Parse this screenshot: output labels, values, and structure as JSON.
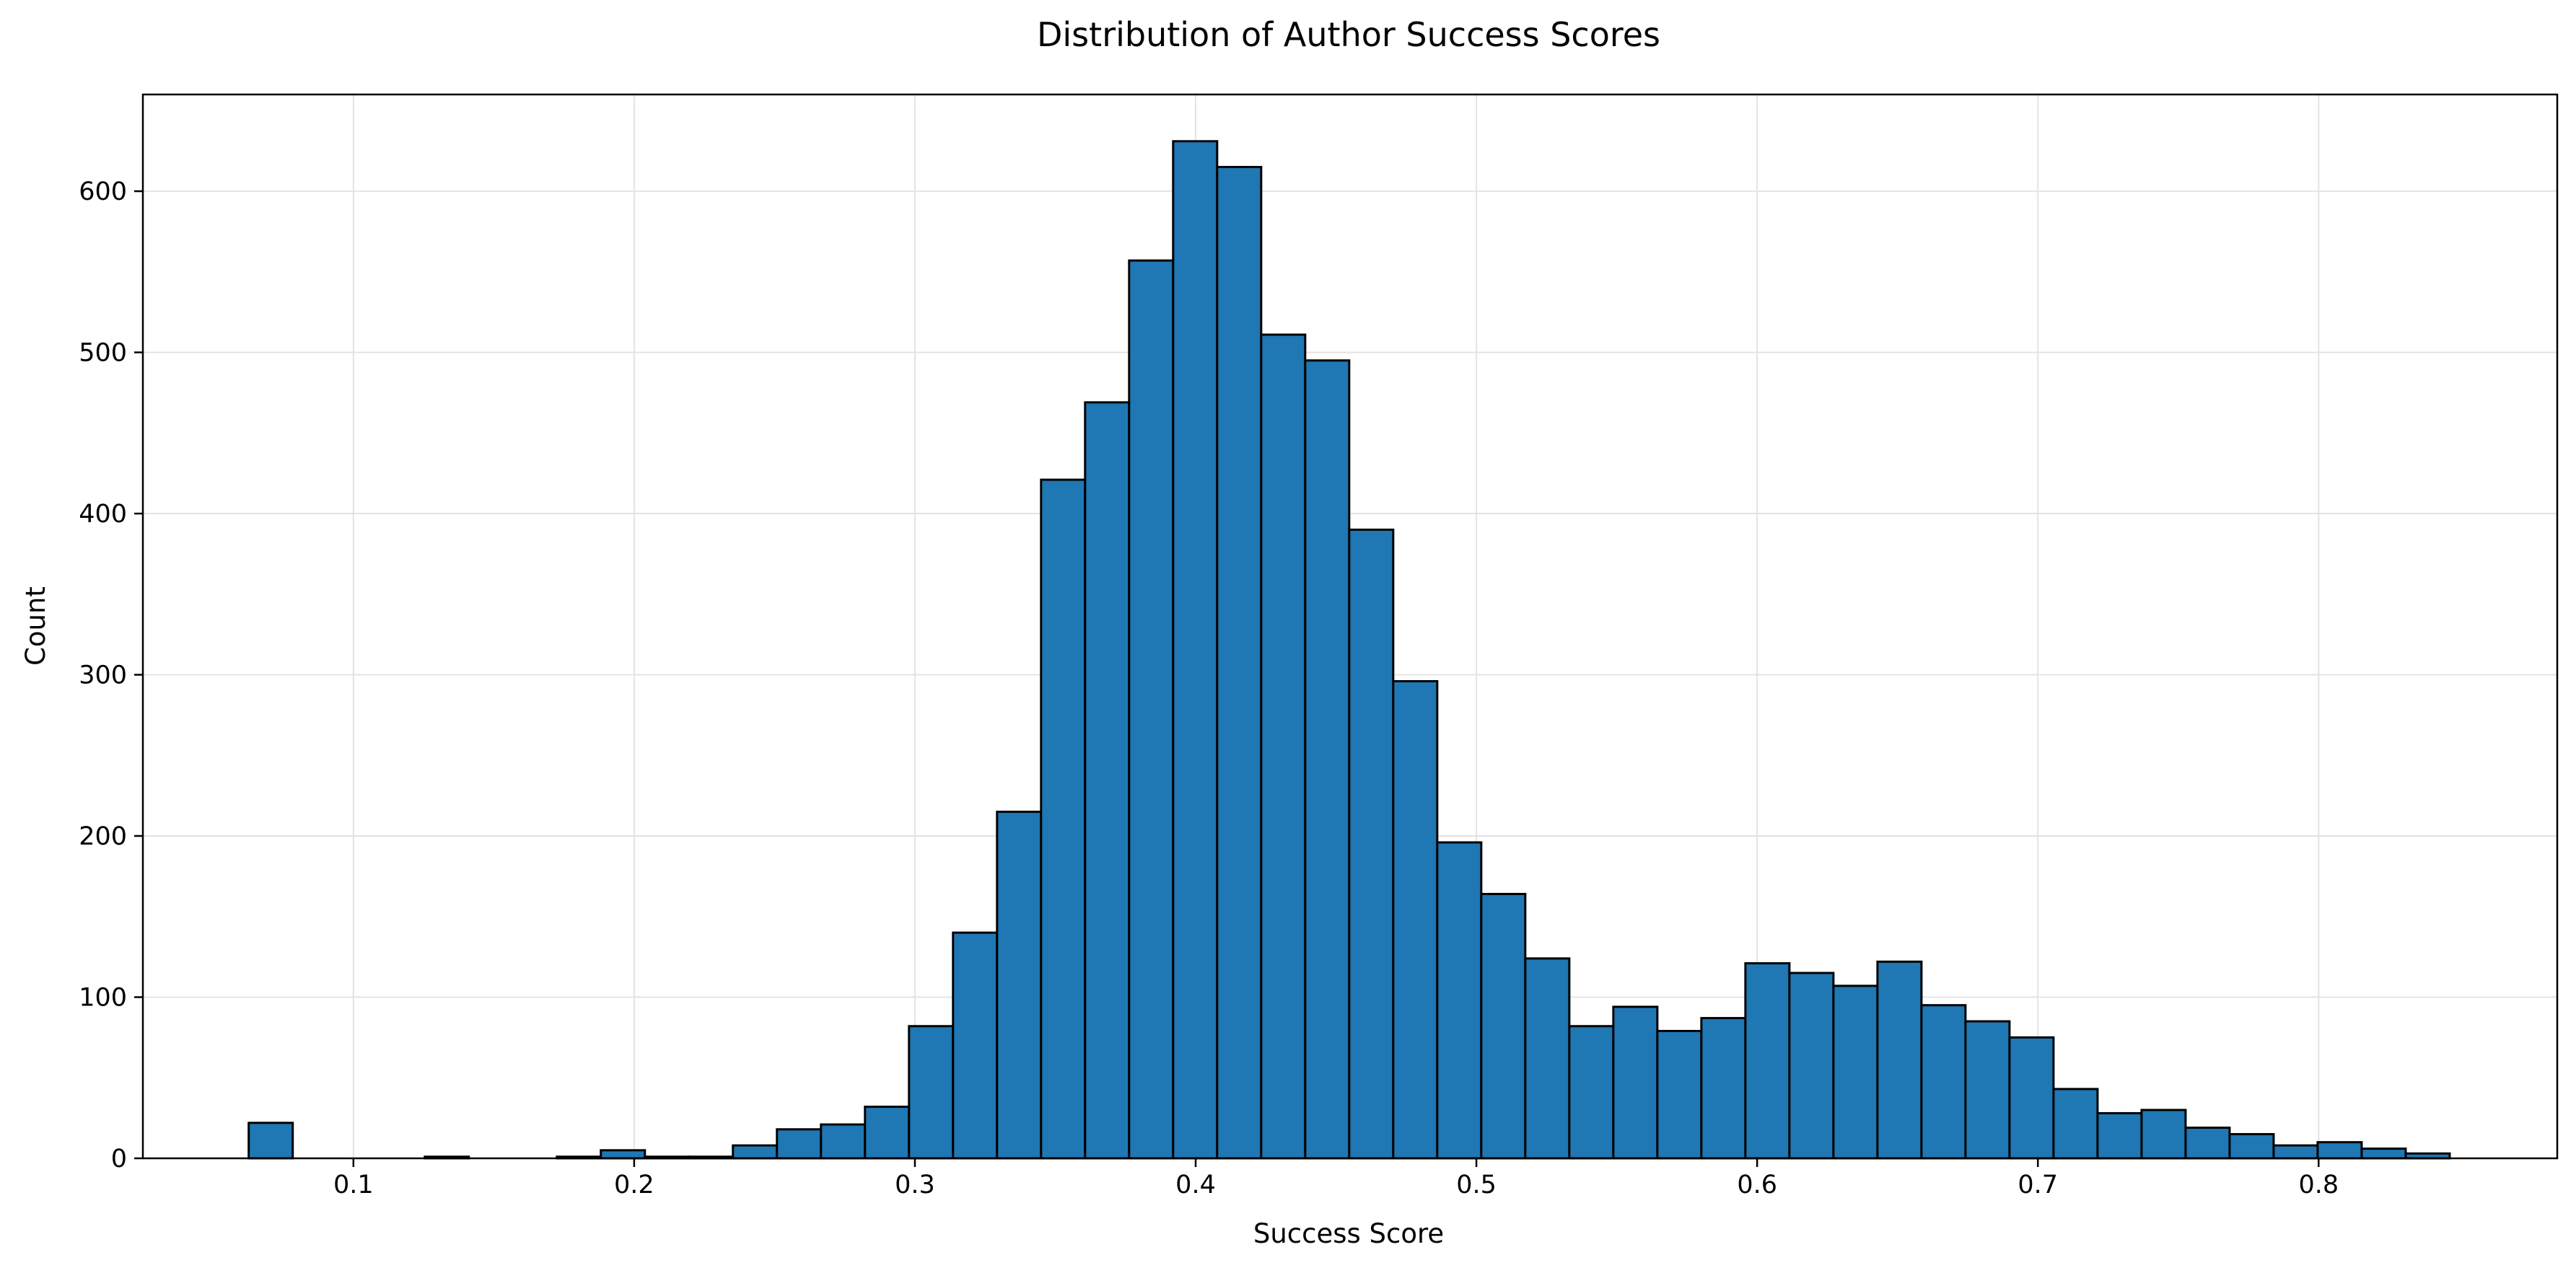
{
  "chart_data": {
    "type": "bar",
    "title": "Distribution of Author Success Scores",
    "xlabel": "Success Score",
    "ylabel": "Count",
    "xlim": [
      0.025,
      0.885
    ],
    "ylim": [
      0,
      660
    ],
    "grid": true,
    "xticks": [
      0.1,
      0.2,
      0.3,
      0.4,
      0.5,
      0.6,
      0.7,
      0.8
    ],
    "xtick_labels": [
      "0.1",
      "0.2",
      "0.3",
      "0.4",
      "0.5",
      "0.6",
      "0.7",
      "0.8"
    ],
    "yticks": [
      0,
      100,
      200,
      300,
      400,
      500,
      600
    ],
    "ytick_labels": [
      "0",
      "100",
      "200",
      "300",
      "400",
      "500",
      "600"
    ],
    "bin_start": 0.0627,
    "bin_width": 0.01568,
    "values": [
      22,
      0,
      0,
      0,
      1,
      0,
      0,
      1,
      5,
      1,
      1,
      8,
      18,
      21,
      32,
      82,
      140,
      215,
      421,
      469,
      557,
      631,
      615,
      511,
      495,
      390,
      296,
      196,
      164,
      124,
      82,
      94,
      79,
      87,
      121,
      115,
      107,
      122,
      95,
      85,
      75,
      43,
      28,
      30,
      19,
      15,
      8,
      10,
      6,
      3
    ],
    "colors": {
      "bar_fill": "#1f77b4",
      "bar_edge": "#000000",
      "grid": "#e3e3e3",
      "axis": "#000000"
    }
  }
}
